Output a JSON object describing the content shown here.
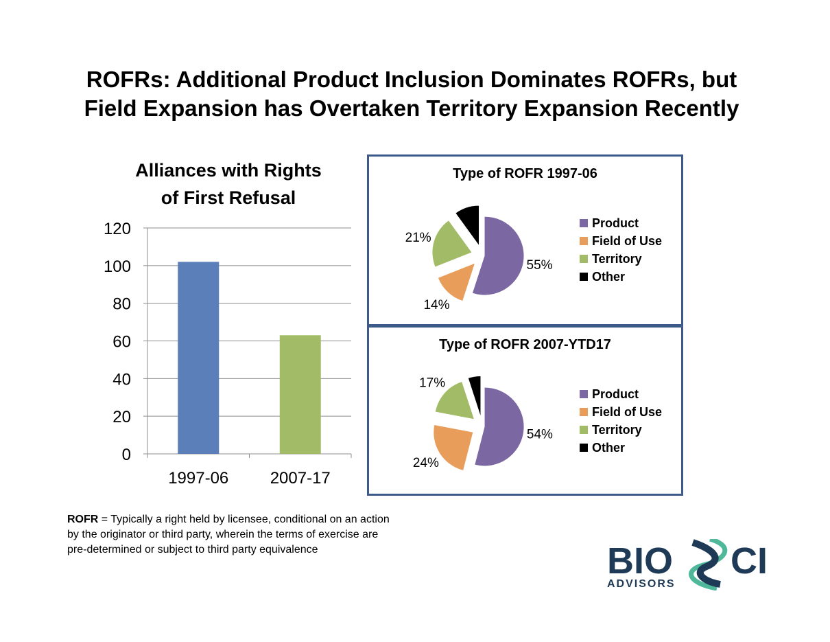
{
  "slide": {
    "title_line1": "ROFRs:  Additional Product Inclusion Dominates ROFRs, but",
    "title_line2": "Field Expansion has Overtaken Territory Expansion Recently"
  },
  "footnote": {
    "term": "ROFR",
    "definition": " = Typically a right held by licensee, conditional on an action by the originator or third party, wherein the terms of exercise are pre-determined or subject to third party equivalence"
  },
  "logo": {
    "name": "BIOSCI",
    "tagline": "ADVISORS",
    "colors": {
      "navy": "#1f3a56",
      "teal": "#4fb79a"
    }
  },
  "chart_data": [
    {
      "type": "bar",
      "title": "Alliances with Rights of First Refusal",
      "title_line1": "Alliances with Rights",
      "title_line2": "of First Refusal",
      "categories": [
        "1997-06",
        "2007-17"
      ],
      "values": [
        102,
        63
      ],
      "colors": [
        "#5b80b9",
        "#a2bb66"
      ],
      "ylim": [
        0,
        120
      ],
      "yticks": [
        "0",
        "20",
        "40",
        "60",
        "80",
        "100",
        "120"
      ],
      "grid": true,
      "xlabel": "",
      "ylabel": ""
    },
    {
      "type": "pie",
      "title": "Type of ROFR 1997-06",
      "labels": [
        "Product",
        "Field of Use",
        "Territory",
        "Other"
      ],
      "values": [
        55,
        14,
        21,
        10
      ],
      "data_labels": [
        "55%",
        "14%",
        "21%",
        ""
      ],
      "colors": [
        "#7b67a1",
        "#e89d5b",
        "#a2bb66",
        "#000000"
      ],
      "legend": "right"
    },
    {
      "type": "pie",
      "title": "Type of ROFR 2007-YTD17",
      "labels": [
        "Product",
        "Field of Use",
        "Territory",
        "Other"
      ],
      "values": [
        54,
        24,
        17,
        5
      ],
      "data_labels": [
        "54%",
        "24%",
        "17%",
        ""
      ],
      "colors": [
        "#7b67a1",
        "#e89d5b",
        "#a2bb66",
        "#000000"
      ],
      "legend": "right"
    }
  ]
}
